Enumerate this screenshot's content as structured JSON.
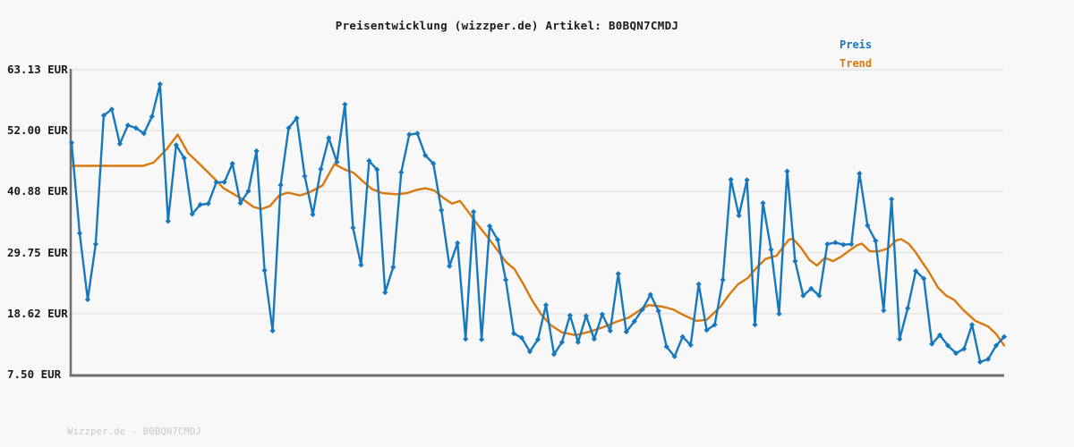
{
  "title": "Preisentwicklung (wizzper.de) Artikel: B0BQN7CMDJ",
  "watermark": "Wizzper.de - B0BQN7CMDJ",
  "legend": {
    "price_label": "Preis",
    "trend_label": "Trend"
  },
  "colors": {
    "price": "#1778be",
    "trend": "#d9790e",
    "background": "#f8f8f8",
    "grid": "#e4e4e4",
    "axis": "#6e6e6e",
    "label": "#1a1a1a",
    "watermark": "#c9c9c9"
  },
  "y_axis": {
    "tick_labels": [
      "63.13 EUR",
      "52.00 EUR",
      "40.88 EUR",
      "29.75 EUR",
      "18.62 EUR",
      "7.50 EUR"
    ],
    "tick_values": [
      63.13,
      52.0,
      40.88,
      29.75,
      18.62,
      7.5
    ],
    "unit": "EUR"
  },
  "chart_data": {
    "type": "line",
    "title": "Preisentwicklung (wizzper.de) Artikel: B0BQN7CMDJ",
    "ylabel": "EUR",
    "ylim": [
      7.5,
      63.13
    ],
    "grid": "horizontal",
    "legend_position": "top-right",
    "x_axis_labels": "none",
    "series": [
      {
        "name": "Preis",
        "color": "#1778be",
        "marker": "diamond",
        "values": [
          49.8,
          33.3,
          21.2,
          31.3,
          54.8,
          55.9,
          49.6,
          53.0,
          52.5,
          51.5,
          54.6,
          60.5,
          35.5,
          49.4,
          47.0,
          36.8,
          38.5,
          38.7,
          42.6,
          42.6,
          46.0,
          38.8,
          41.0,
          48.3,
          26.5,
          15.5,
          42.1,
          52.5,
          54.3,
          43.7,
          36.7,
          45.0,
          50.7,
          46.3,
          56.8,
          34.3,
          27.5,
          46.5,
          44.9,
          22.5,
          27.1,
          44.4,
          51.3,
          51.5,
          47.5,
          46.0,
          37.5,
          27.3,
          31.5,
          14.0,
          37.2,
          13.9,
          34.6,
          32.1,
          24.8,
          15.0,
          14.2,
          11.7,
          13.9,
          20.2,
          11.2,
          13.4,
          18.3,
          13.4,
          18.2,
          14.0,
          18.5,
          15.5,
          25.9,
          15.3,
          17.2,
          19.4,
          22.1,
          19.1,
          12.6,
          10.8,
          14.4,
          12.9,
          24.0,
          15.6,
          16.6,
          24.8,
          43.1,
          36.5,
          43.0,
          16.6,
          38.8,
          30.3,
          18.6,
          44.6,
          28.2,
          21.9,
          23.2,
          21.9,
          31.3,
          31.6,
          31.2,
          31.3,
          44.2,
          34.7,
          31.9,
          19.2,
          39.5,
          14.0,
          19.6,
          26.4,
          25.0,
          13.1,
          14.7,
          12.8,
          11.4,
          12.2,
          16.6,
          9.8,
          10.3,
          12.8,
          14.4
        ]
      },
      {
        "name": "Trend",
        "color": "#d9790e",
        "marker": "none",
        "points": [
          [
            0,
            45.6
          ],
          [
            8.9,
            45.6
          ],
          [
            10.2,
            46.2
          ],
          [
            11.8,
            48.6
          ],
          [
            13.2,
            51.3
          ],
          [
            14.5,
            47.9
          ],
          [
            15.6,
            46.4
          ],
          [
            16.7,
            44.8
          ],
          [
            17.8,
            43.2
          ],
          [
            18.9,
            41.5
          ],
          [
            20.3,
            40.3
          ],
          [
            21.4,
            39.4
          ],
          [
            22.6,
            38.1
          ],
          [
            23.6,
            37.7
          ],
          [
            24.7,
            38.3
          ],
          [
            25.8,
            40.2
          ],
          [
            26.9,
            40.7
          ],
          [
            28.4,
            40.2
          ],
          [
            29.5,
            40.7
          ],
          [
            31.2,
            42.0
          ],
          [
            32.7,
            45.9
          ],
          [
            34.0,
            44.9
          ],
          [
            35.1,
            44.3
          ],
          [
            36.2,
            42.8
          ],
          [
            37.3,
            41.4
          ],
          [
            38.7,
            40.6
          ],
          [
            40.4,
            40.4
          ],
          [
            41.7,
            40.6
          ],
          [
            42.9,
            41.2
          ],
          [
            44.0,
            41.5
          ],
          [
            45.1,
            41.1
          ],
          [
            46.2,
            39.8
          ],
          [
            47.3,
            38.7
          ],
          [
            48.3,
            39.2
          ],
          [
            49.5,
            36.9
          ],
          [
            50.6,
            34.7
          ],
          [
            51.8,
            32.5
          ],
          [
            52.9,
            30.3
          ],
          [
            54.0,
            28.1
          ],
          [
            55.1,
            26.7
          ],
          [
            56.2,
            24.0
          ],
          [
            57.3,
            21.0
          ],
          [
            58.4,
            18.5
          ],
          [
            59.6,
            16.5
          ],
          [
            61.0,
            15.2
          ],
          [
            62.7,
            14.7
          ],
          [
            64.6,
            15.4
          ],
          [
            66.2,
            16.2
          ],
          [
            67.9,
            17.2
          ],
          [
            69.3,
            17.9
          ],
          [
            70.7,
            19.3
          ],
          [
            71.8,
            20.2
          ],
          [
            73.5,
            19.9
          ],
          [
            74.8,
            19.4
          ],
          [
            76.2,
            18.3
          ],
          [
            77.7,
            17.3
          ],
          [
            79.0,
            17.5
          ],
          [
            80.7,
            19.9
          ],
          [
            81.8,
            22.1
          ],
          [
            82.9,
            24.0
          ],
          [
            84.1,
            25.1
          ],
          [
            85.2,
            27.0
          ],
          [
            86.3,
            28.6
          ],
          [
            87.7,
            29.2
          ],
          [
            88.5,
            30.8
          ],
          [
            89.2,
            32.1
          ],
          [
            89.7,
            32.3
          ],
          [
            90.7,
            30.7
          ],
          [
            91.8,
            28.4
          ],
          [
            92.7,
            27.4
          ],
          [
            93.7,
            28.8
          ],
          [
            94.7,
            28.2
          ],
          [
            95.7,
            29.0
          ],
          [
            96.8,
            30.2
          ],
          [
            97.7,
            31.1
          ],
          [
            98.3,
            31.4
          ],
          [
            99.3,
            30.0
          ],
          [
            100.4,
            30.0
          ],
          [
            101.5,
            30.5
          ],
          [
            102.6,
            32.0
          ],
          [
            103.2,
            32.2
          ],
          [
            104.1,
            31.4
          ],
          [
            104.9,
            30.0
          ],
          [
            105.8,
            28.0
          ],
          [
            106.6,
            26.3
          ],
          [
            107.8,
            23.3
          ],
          [
            108.8,
            21.9
          ],
          [
            109.8,
            21.1
          ],
          [
            110.9,
            19.3
          ],
          [
            112.4,
            17.3
          ],
          [
            114.0,
            16.3
          ],
          [
            115.0,
            14.9
          ],
          [
            116,
            12.8
          ]
        ]
      }
    ]
  }
}
